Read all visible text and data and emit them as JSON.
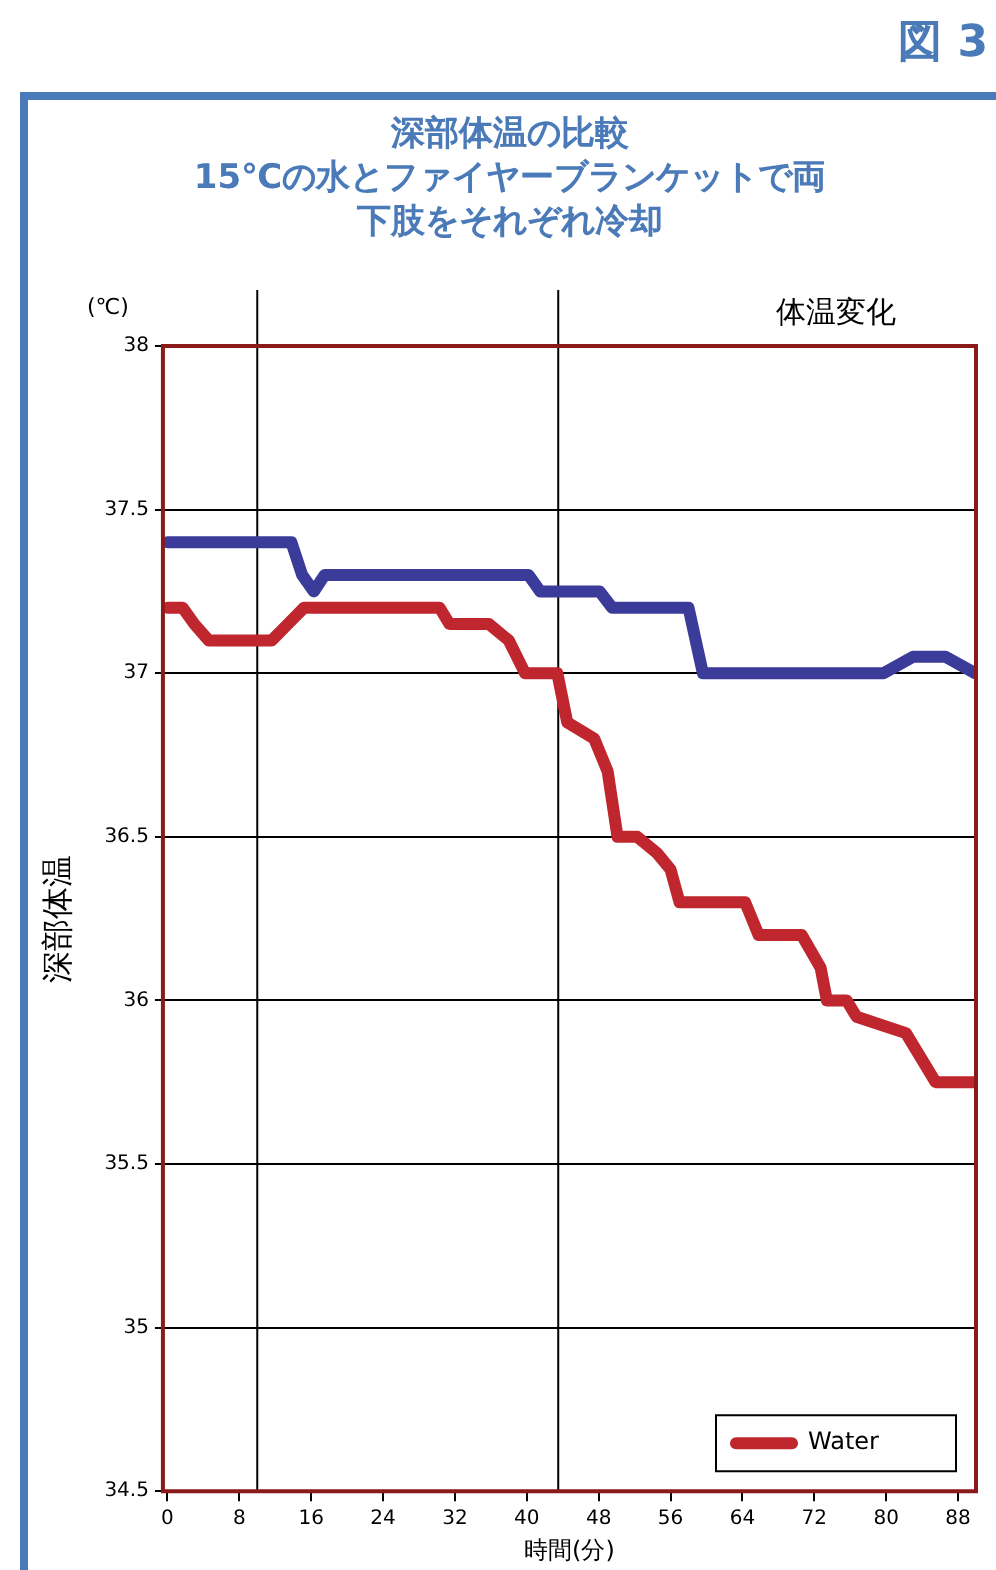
{
  "chart_data": {
    "type": "line",
    "title": "深部体温の比較",
    "subtitle": "15℃の水とファイヤーブランケットで両下肢をそれぞれ冷却",
    "xlabel": "時間(分)",
    "ylabel": "深部体温",
    "annotations": [
      "図 3",
      "(℃)",
      "体温変化"
    ],
    "xlim": [
      -0.5,
      90
    ],
    "xticks": [
      0,
      8,
      16,
      24,
      32,
      40,
      48,
      56,
      64,
      72,
      80,
      88
    ],
    "ylim": [
      34.5,
      38
    ],
    "yticks": [
      34.5,
      35,
      35.5,
      36,
      36.5,
      37,
      37.5,
      38
    ],
    "grid": "y",
    "legend": "bottom right",
    "marker": "none",
    "line_style": "solid",
    "ref_lines": [
      {
        "axis": "x",
        "value": 10,
        "color": "#000000"
      },
      {
        "axis": "x",
        "value": 43.5,
        "color": "#000000"
      }
    ],
    "series": [
      {
        "color": "#3b3b9a",
        "x": [
          0,
          13.8,
          15,
          16.3,
          17.5,
          40.2,
          41.5,
          48.1,
          49.5,
          58,
          59.6,
          79.7,
          83,
          86.6,
          89.9
        ],
        "values": [
          37.4,
          37.4,
          37.3,
          37.25,
          37.3,
          37.3,
          37.25,
          37.25,
          37.2,
          37.2,
          37.0,
          37.0,
          37.05,
          37.05,
          37.0
        ]
      },
      {
        "name": "Water",
        "color": "#c0262d",
        "x": [
          0,
          1.7,
          3,
          4.6,
          11.6,
          13.4,
          15.2,
          30.3,
          31.4,
          35.8,
          38,
          39.8,
          43.4,
          44.5,
          47.5,
          49,
          50.1,
          52.3,
          54.5,
          56,
          57,
          64.3,
          65.8,
          70.6,
          72.7,
          73.4,
          75.6,
          76.7,
          82.2,
          85.5,
          89.9
        ],
        "values": [
          37.2,
          37.2,
          37.15,
          37.1,
          37.1,
          37.15,
          37.2,
          37.2,
          37.15,
          37.15,
          37.1,
          37.0,
          37.0,
          36.85,
          36.8,
          36.7,
          36.5,
          36.5,
          36.45,
          36.4,
          36.3,
          36.3,
          36.2,
          36.2,
          36.1,
          36.0,
          36.0,
          35.95,
          35.9,
          35.75,
          35.75
        ]
      }
    ]
  }
}
